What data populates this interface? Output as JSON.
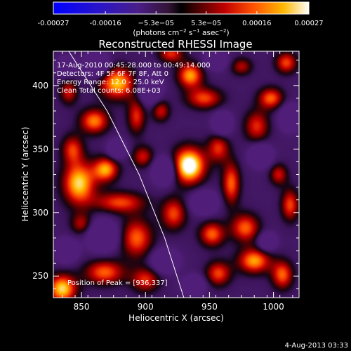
{
  "chart_data": {
    "type": "heatmap",
    "title": "Reconstructed RHESSI Image",
    "xlabel": "Heliocentric X (arcsec)",
    "ylabel": "Heliocentric Y (arcsec)",
    "xlim": [
      828,
      1020
    ],
    "ylim": [
      233,
      427
    ],
    "x_ticks": [
      850,
      900,
      950,
      1000
    ],
    "y_ticks": [
      250,
      300,
      350,
      400
    ],
    "colorbar": {
      "ticks": [
        "-0.00027",
        "-0.00016",
        "−5.3e−05",
        "5.3e−05",
        "0.00016",
        "0.00027"
      ],
      "tick_values": [
        -0.00027,
        -0.00016,
        -5.3e-05,
        5.3e-05,
        0.00016,
        0.00027
      ],
      "range": [
        -0.00027,
        0.00027
      ],
      "unit_parts": [
        "(photons cm",
        "−2",
        " s",
        "−1",
        " asec",
        "−2",
        ")"
      ]
    },
    "annotations": {
      "time": "17-Aug-2010 00:45:28.000 to 00:49:14.000",
      "detectors": "Detectors: 4F 5F 6F 7F 8F, Att 0",
      "energy": "Energy Range: 12.0 - 25.0 keV",
      "clean": "Clean    Total counts: 6.08E+03",
      "peak": "Position of Peak = [936,337]"
    },
    "peak": {
      "x": 936,
      "y": 337
    },
    "limb_arc": [
      [
        840,
        427
      ],
      [
        870,
        380
      ],
      [
        895,
        330
      ],
      [
        915,
        280
      ],
      [
        930,
        233
      ]
    ],
    "blobs": [
      {
        "x": 934,
        "y": 337,
        "sx": 9,
        "sy": 10,
        "a": 1.0
      },
      {
        "x": 848,
        "y": 323,
        "sx": 9,
        "sy": 12,
        "a": 0.8
      },
      {
        "x": 869,
        "y": 334,
        "sx": 7,
        "sy": 7,
        "a": 0.7
      },
      {
        "x": 860,
        "y": 372,
        "sx": 8,
        "sy": 7,
        "a": 0.65
      },
      {
        "x": 878,
        "y": 402,
        "sx": 10,
        "sy": 9,
        "a": 0.75
      },
      {
        "x": 893,
        "y": 376,
        "sx": 5,
        "sy": 10,
        "a": 0.5
      },
      {
        "x": 898,
        "y": 344,
        "sx": 6,
        "sy": 6,
        "a": 0.45
      },
      {
        "x": 880,
        "y": 308,
        "sx": 14,
        "sy": 6,
        "a": 0.55
      },
      {
        "x": 893,
        "y": 280,
        "sx": 9,
        "sy": 11,
        "a": 0.6
      },
      {
        "x": 868,
        "y": 253,
        "sx": 11,
        "sy": 7,
        "a": 0.6
      },
      {
        "x": 900,
        "y": 247,
        "sx": 8,
        "sy": 7,
        "a": 0.5
      },
      {
        "x": 835,
        "y": 240,
        "sx": 8,
        "sy": 8,
        "a": 0.8
      },
      {
        "x": 843,
        "y": 350,
        "sx": 6,
        "sy": 8,
        "a": 0.5
      },
      {
        "x": 840,
        "y": 395,
        "sx": 5,
        "sy": 7,
        "a": 0.45
      },
      {
        "x": 912,
        "y": 380,
        "sx": 5,
        "sy": 6,
        "a": 0.45
      },
      {
        "x": 946,
        "y": 390,
        "sx": 10,
        "sy": 6,
        "a": 0.55
      },
      {
        "x": 935,
        "y": 408,
        "sx": 7,
        "sy": 7,
        "a": 0.7
      },
      {
        "x": 957,
        "y": 351,
        "sx": 6,
        "sy": 8,
        "a": 0.5
      },
      {
        "x": 967,
        "y": 323,
        "sx": 5,
        "sy": 12,
        "a": 0.6
      },
      {
        "x": 922,
        "y": 299,
        "sx": 7,
        "sy": 9,
        "a": 0.55
      },
      {
        "x": 952,
        "y": 283,
        "sx": 7,
        "sy": 7,
        "a": 0.6
      },
      {
        "x": 978,
        "y": 288,
        "sx": 8,
        "sy": 8,
        "a": 0.6
      },
      {
        "x": 985,
        "y": 262,
        "sx": 9,
        "sy": 7,
        "a": 0.7
      },
      {
        "x": 957,
        "y": 252,
        "sx": 7,
        "sy": 7,
        "a": 0.55
      },
      {
        "x": 1007,
        "y": 251,
        "sx": 6,
        "sy": 8,
        "a": 0.6
      },
      {
        "x": 1013,
        "y": 306,
        "sx": 5,
        "sy": 9,
        "a": 0.55
      },
      {
        "x": 1004,
        "y": 330,
        "sx": 5,
        "sy": 6,
        "a": 0.45
      },
      {
        "x": 987,
        "y": 368,
        "sx": 7,
        "sy": 9,
        "a": 0.5
      },
      {
        "x": 998,
        "y": 390,
        "sx": 7,
        "sy": 6,
        "a": 0.6
      },
      {
        "x": 1010,
        "y": 418,
        "sx": 6,
        "sy": 6,
        "a": 0.55
      },
      {
        "x": 975,
        "y": 415,
        "sx": 6,
        "sy": 5,
        "a": 0.4
      },
      {
        "x": 850,
        "y": 291,
        "sx": 6,
        "sy": 6,
        "a": 0.4
      },
      {
        "x": 920,
        "y": 425,
        "sx": 7,
        "sy": 5,
        "a": 0.5
      },
      {
        "x": 862,
        "y": 416,
        "sx": 6,
        "sy": 6,
        "a": -0.8
      },
      {
        "x": 903,
        "y": 398,
        "sx": 6,
        "sy": 8,
        "a": -0.7
      },
      {
        "x": 915,
        "y": 333,
        "sx": 6,
        "sy": 7,
        "a": -0.75
      },
      {
        "x": 946,
        "y": 308,
        "sx": 7,
        "sy": 6,
        "a": -0.6
      },
      {
        "x": 867,
        "y": 282,
        "sx": 8,
        "sy": 8,
        "a": -0.7
      },
      {
        "x": 878,
        "y": 350,
        "sx": 5,
        "sy": 5,
        "a": -0.6
      },
      {
        "x": 915,
        "y": 262,
        "sx": 7,
        "sy": 6,
        "a": -0.6
      },
      {
        "x": 955,
        "y": 420,
        "sx": 6,
        "sy": 5,
        "a": -0.5
      },
      {
        "x": 960,
        "y": 370,
        "sx": 5,
        "sy": 6,
        "a": -0.6
      },
      {
        "x": 990,
        "y": 345,
        "sx": 6,
        "sy": 6,
        "a": -0.6
      },
      {
        "x": 995,
        "y": 277,
        "sx": 5,
        "sy": 5,
        "a": -0.5
      },
      {
        "x": 938,
        "y": 243,
        "sx": 6,
        "sy": 5,
        "a": -0.5
      },
      {
        "x": 838,
        "y": 270,
        "sx": 6,
        "sy": 6,
        "a": -0.6
      },
      {
        "x": 1013,
        "y": 375,
        "sx": 6,
        "sy": 7,
        "a": -0.5
      },
      {
        "x": 838,
        "y": 415,
        "sx": 5,
        "sy": 5,
        "a": -0.5
      }
    ]
  },
  "footer": {
    "timestamp": "4-Aug-2013 03:33"
  }
}
